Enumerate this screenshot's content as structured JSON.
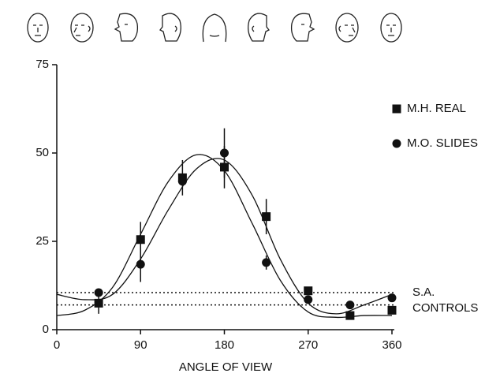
{
  "chart_data": {
    "type": "scatter",
    "x_label": "ANGLE OF VIEW",
    "xlim": [
      0,
      360
    ],
    "xticks": [
      0,
      90,
      180,
      270,
      360
    ],
    "ylim": [
      0,
      75
    ],
    "yticks": [
      0,
      25,
      50,
      75
    ],
    "legend": "upper right",
    "series": [
      {
        "name": "M.H. REAL",
        "marker": "square",
        "color": "#111111",
        "x": [
          45,
          90,
          135,
          180,
          225,
          270,
          315,
          360
        ],
        "values": [
          7.5,
          25.5,
          43,
          46,
          32,
          11,
          4,
          5.5
        ],
        "errors": [
          3,
          5,
          5,
          6,
          5,
          null,
          null,
          null
        ]
      },
      {
        "name": "M.O. SLIDES",
        "marker": "circle",
        "color": "#111111",
        "x": [
          45,
          90,
          135,
          180,
          225,
          270,
          315,
          360
        ],
        "values": [
          10.5,
          18.5,
          42,
          50,
          19,
          8.5,
          7,
          9
        ],
        "errors": [
          null,
          5,
          null,
          7,
          2,
          null,
          null,
          null
        ]
      }
    ],
    "fits": [
      {
        "x": [
          0,
          30,
          60,
          90,
          120,
          150,
          180,
          210,
          240,
          270,
          300,
          330,
          360
        ],
        "values": [
          4,
          5.5,
          12,
          27,
          42,
          49.5,
          45,
          30,
          14,
          5,
          3.5,
          4,
          4
        ]
      },
      {
        "x": [
          0,
          30,
          60,
          90,
          120,
          150,
          180,
          210,
          240,
          270,
          300,
          330,
          360
        ],
        "values": [
          10,
          8.5,
          10,
          20,
          34,
          45.5,
          48,
          38,
          20,
          7.5,
          4.5,
          7,
          10
        ]
      }
    ],
    "reference_lines": [
      10.5,
      7
    ],
    "reference_labels": [
      "S.A.",
      "CONTROLS"
    ]
  }
}
